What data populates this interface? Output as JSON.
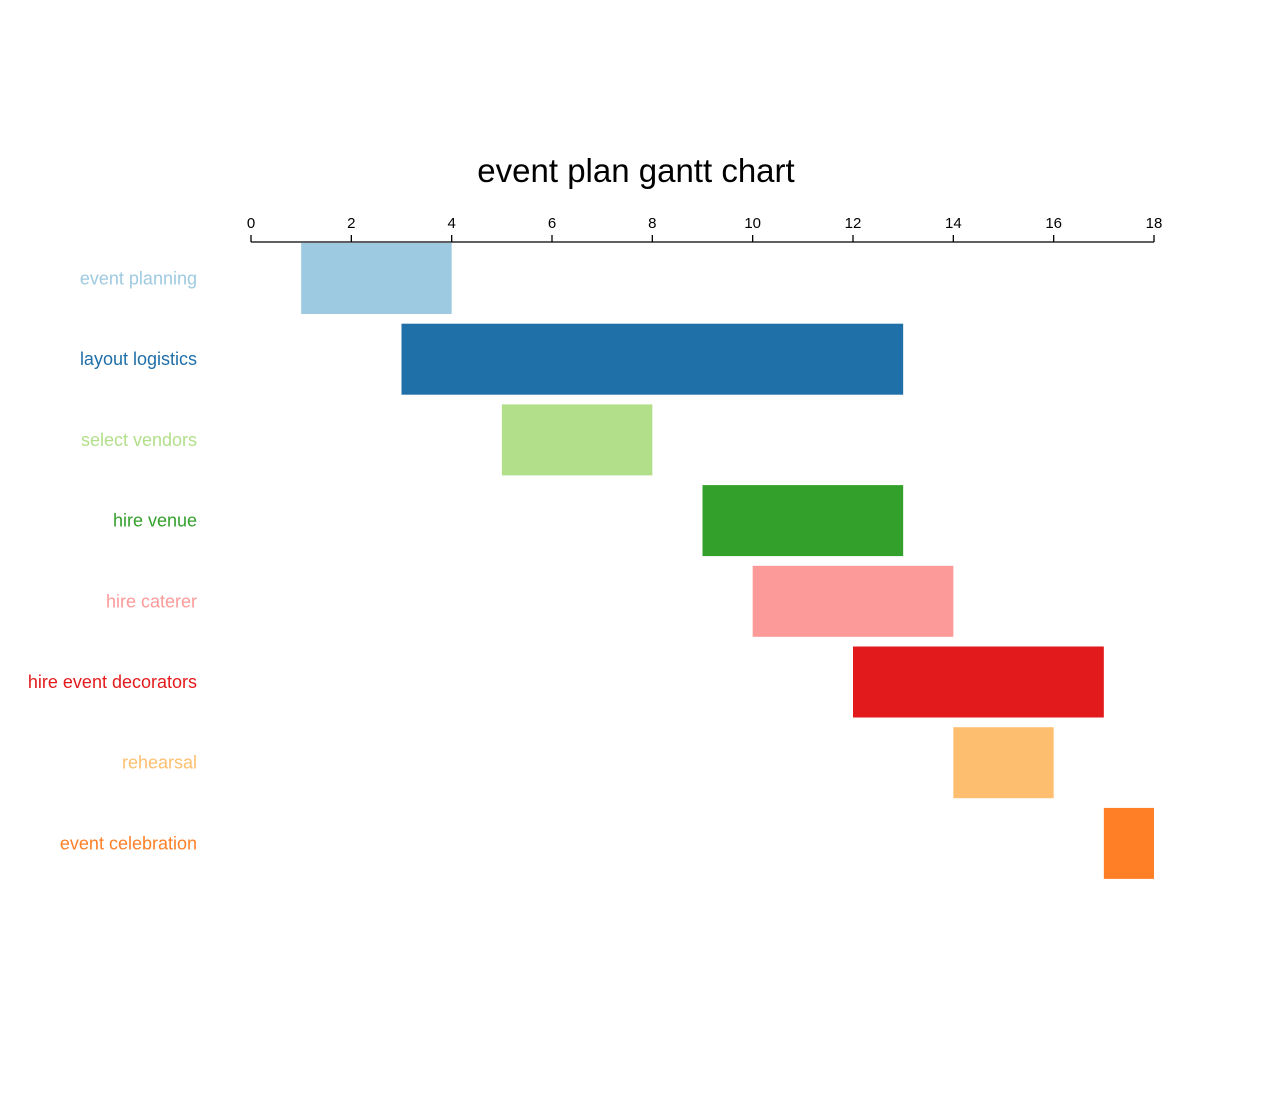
{
  "chart_data": {
    "type": "bar",
    "title": "event plan gantt chart",
    "xlabel": "",
    "ylabel": "",
    "xlim": [
      0,
      18
    ],
    "xticks": [
      "0",
      "2",
      "4",
      "6",
      "8",
      "10",
      "12",
      "14",
      "16",
      "18"
    ],
    "grid": false,
    "legend": "none",
    "tasks": [
      {
        "name": "event planning",
        "start": 1,
        "end": 4,
        "color": "#9ecae1"
      },
      {
        "name": "layout logistics",
        "start": 3,
        "end": 13,
        "color": "#1f6fa8"
      },
      {
        "name": "select vendors",
        "start": 5,
        "end": 8,
        "color": "#b2df8a"
      },
      {
        "name": "hire venue",
        "start": 9,
        "end": 13,
        "color": "#33a02c"
      },
      {
        "name": "hire caterer",
        "start": 10,
        "end": 14,
        "color": "#fb9a99"
      },
      {
        "name": "hire event decorators",
        "start": 12,
        "end": 17,
        "color": "#e31a1c"
      },
      {
        "name": "rehearsal",
        "start": 14,
        "end": 16,
        "color": "#fdbf6f"
      },
      {
        "name": "event celebration",
        "start": 17,
        "end": 18,
        "color": "#ff7f27"
      }
    ]
  }
}
